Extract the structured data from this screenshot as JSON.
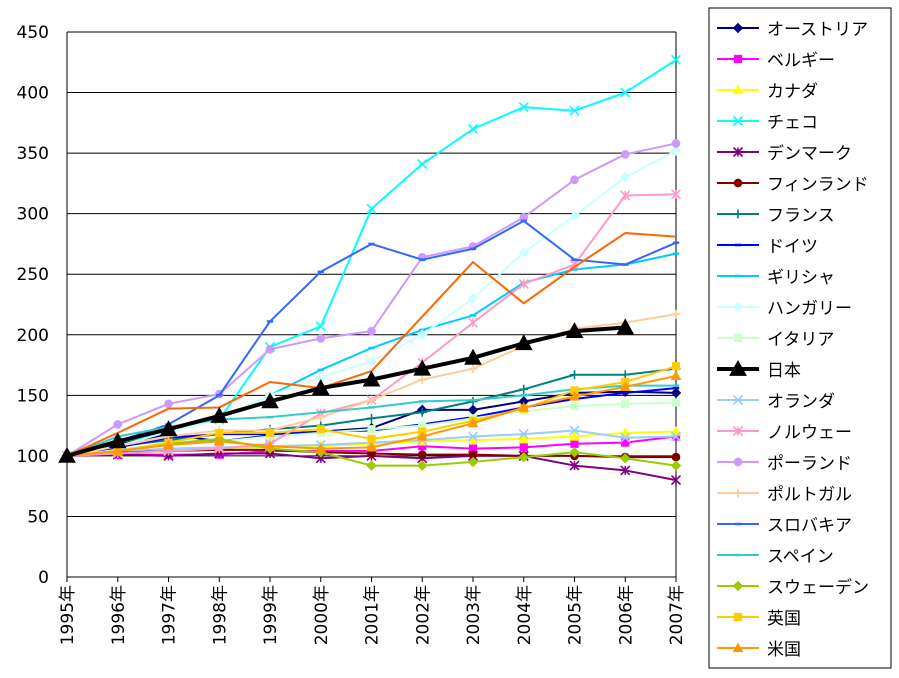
{
  "chart_data": {
    "type": "line",
    "title": "",
    "xlabel": "",
    "ylabel": "",
    "ylim": [
      0,
      450
    ],
    "yticks": [
      0,
      50,
      100,
      150,
      200,
      250,
      300,
      350,
      400,
      450
    ],
    "grid": "horizontal",
    "legend_position": "right",
    "categories": [
      "1995年",
      "1996年",
      "1997年",
      "1998年",
      "1999年",
      "2000年",
      "2001年",
      "2002年",
      "2003年",
      "2004年",
      "2005年",
      "2006年",
      "2007年"
    ],
    "series": [
      {
        "name": "オーストリア",
        "color": "#000080",
        "marker": "diamond",
        "values": [
          100,
          110,
          118,
          112,
          117,
          120,
          123,
          138,
          138,
          145,
          152,
          153,
          152
        ]
      },
      {
        "name": "ベルギー",
        "color": "#ff00ff",
        "marker": "square",
        "values": [
          100,
          101,
          101,
          101,
          104,
          104,
          104,
          108,
          106,
          107,
          110,
          111,
          116
        ]
      },
      {
        "name": "カナダ",
        "color": "#ffff00",
        "marker": "triangle",
        "values": [
          100,
          103,
          104,
          106,
          107,
          108,
          110,
          112,
          113,
          114,
          116,
          119,
          120
        ]
      },
      {
        "name": "チェコ",
        "color": "#00ffff",
        "marker": "x",
        "values": [
          100,
          111,
          120,
          130,
          190,
          207,
          304,
          341,
          370,
          388,
          385,
          400,
          427
        ]
      },
      {
        "name": "デンマーク",
        "color": "#800080",
        "marker": "star",
        "values": [
          100,
          101,
          100,
          102,
          102,
          98,
          100,
          98,
          100,
          100,
          92,
          88,
          80
        ]
      },
      {
        "name": "フィンランド",
        "color": "#800000",
        "marker": "circle",
        "values": [
          100,
          103,
          104,
          105,
          105,
          103,
          102,
          101,
          101,
          100,
          100,
          99,
          99
        ]
      },
      {
        "name": "フランス",
        "color": "#008080",
        "marker": "plus",
        "values": [
          100,
          108,
          113,
          118,
          122,
          125,
          131,
          136,
          145,
          155,
          167,
          167,
          172
        ]
      },
      {
        "name": "ドイツ",
        "color": "#0000ff",
        "marker": "dash",
        "values": [
          100,
          107,
          115,
          118,
          118,
          120,
          121,
          126,
          132,
          140,
          147,
          152,
          156
        ]
      },
      {
        "name": "ギリシャ",
        "color": "#00ccff",
        "marker": "dash",
        "values": [
          100,
          112,
          123,
          130,
          150,
          171,
          189,
          204,
          216,
          243,
          254,
          258,
          267
        ]
      },
      {
        "name": "ハンガリー",
        "color": "#ccffff",
        "marker": "diamond",
        "values": [
          100,
          108,
          120,
          130,
          150,
          165,
          178,
          200,
          230,
          268,
          298,
          330,
          352
        ]
      },
      {
        "name": "イタリア",
        "color": "#ccffcc",
        "marker": "square",
        "values": [
          100,
          105,
          110,
          112,
          116,
          119,
          122,
          125,
          131,
          137,
          141,
          143,
          144
        ]
      },
      {
        "name": "日本",
        "color": "#000000",
        "marker": "triangle",
        "width": 4,
        "values": [
          100,
          112,
          122,
          133,
          145,
          156,
          163,
          172,
          181,
          193,
          203,
          206,
          null
        ]
      },
      {
        "name": "オランダ",
        "color": "#99ccff",
        "marker": "x",
        "values": [
          100,
          104,
          106,
          107,
          108,
          109,
          111,
          113,
          116,
          118,
          121,
          115,
          116
        ]
      },
      {
        "name": "ノルウェー",
        "color": "#ff99cc",
        "marker": "star",
        "values": [
          100,
          102,
          104,
          106,
          110,
          135,
          146,
          177,
          210,
          242,
          258,
          315,
          316
        ]
      },
      {
        "name": "ポーランド",
        "color": "#cc99ff",
        "marker": "circle",
        "values": [
          100,
          126,
          143,
          151,
          188,
          197,
          203,
          264,
          273,
          297,
          328,
          349,
          358
        ]
      },
      {
        "name": "ポルトガル",
        "color": "#ffcc99",
        "marker": "plus",
        "values": [
          100,
          108,
          116,
          121,
          121,
          132,
          146,
          163,
          172,
          191,
          205,
          210,
          217
        ]
      },
      {
        "name": "スロバキア",
        "color": "#3366ff",
        "marker": "dash",
        "values": [
          100,
          112,
          126,
          150,
          211,
          252,
          275,
          262,
          271,
          294,
          262,
          258,
          276
        ]
      },
      {
        "name": "スペイン",
        "color": "#33cccc",
        "marker": "dash",
        "values": [
          100,
          116,
          124,
          130,
          132,
          136,
          140,
          145,
          146,
          150,
          155,
          158,
          158
        ]
      },
      {
        "name": "スウェーデン",
        "color": "#99cc00",
        "marker": "diamond",
        "values": [
          100,
          104,
          110,
          114,
          106,
          103,
          92,
          92,
          95,
          99,
          103,
          98,
          92
        ]
      },
      {
        "name": "英国",
        "color": "#ffcc00",
        "marker": "square",
        "values": [
          100,
          104,
          111,
          119,
          119,
          122,
          114,
          120,
          129,
          139,
          154,
          161,
          174
        ]
      },
      {
        "name": "米国",
        "color": "#ff9900",
        "marker": "triangle",
        "values": [
          100,
          104,
          109,
          112,
          108,
          106,
          107,
          116,
          127,
          140,
          149,
          157,
          166
        ]
      },
      {
        "name": "",
        "color": "#ff6600",
        "marker": "none",
        "values": [
          100,
          119,
          139,
          140,
          161,
          156,
          170,
          215,
          260,
          226,
          256,
          284,
          281
        ]
      }
    ]
  }
}
